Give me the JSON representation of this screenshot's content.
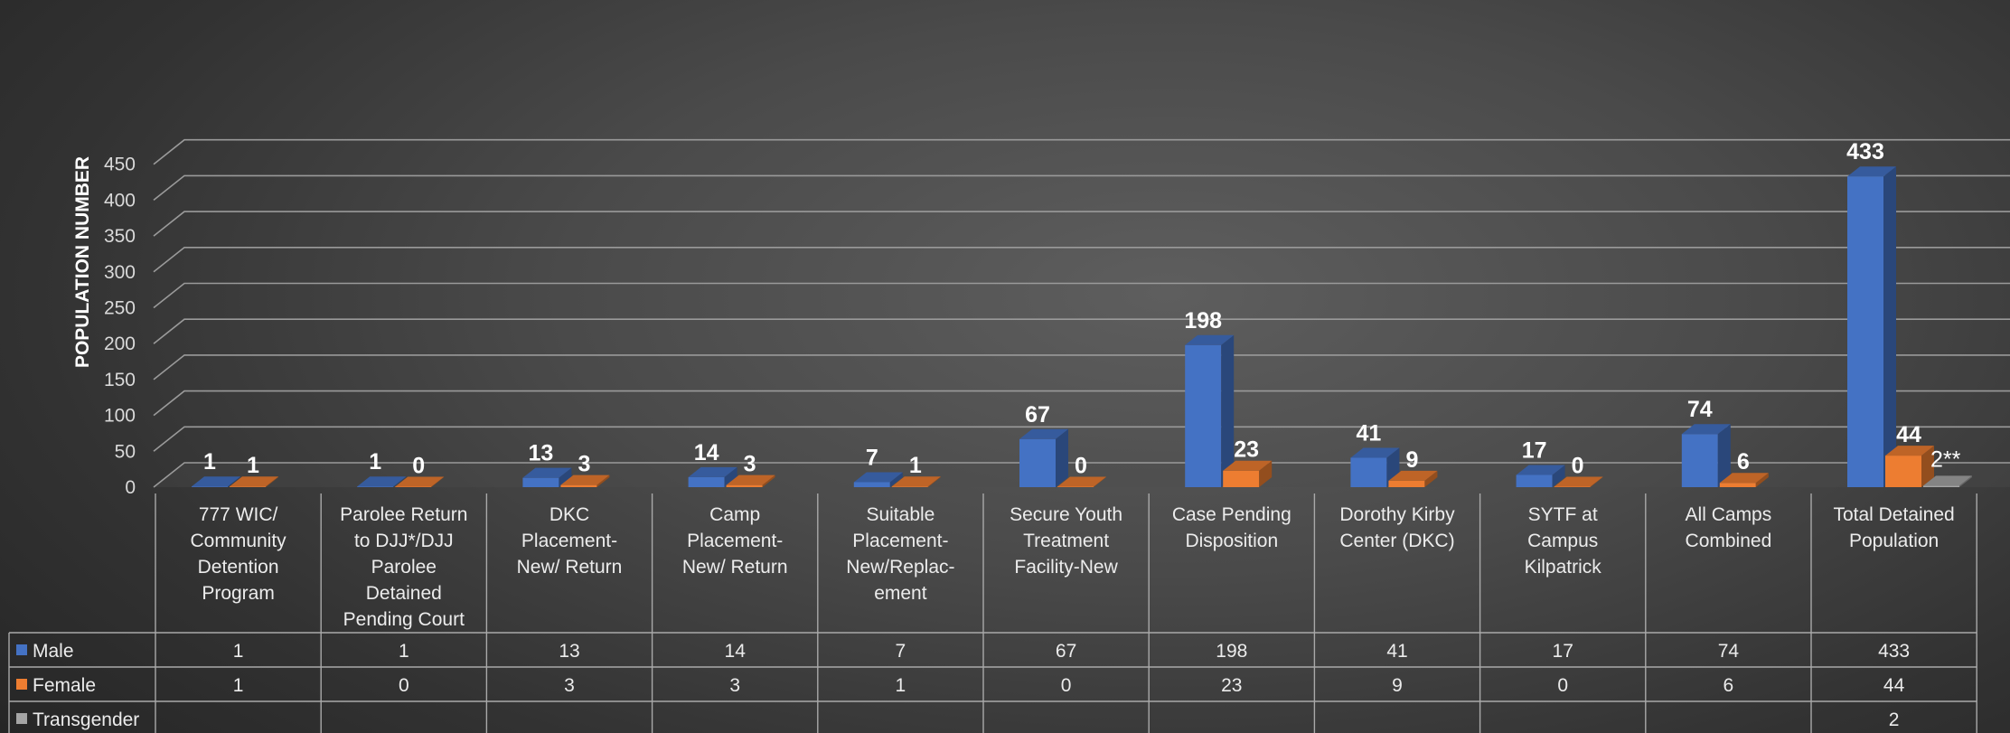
{
  "chart_data": {
    "type": "bar",
    "ylabel": "POPULATION NUMBER",
    "ylim": [
      0,
      450
    ],
    "yticks": [
      0,
      50,
      100,
      150,
      200,
      250,
      300,
      350,
      400,
      450
    ],
    "grid": true,
    "legend": "data-table-left",
    "categories": [
      [
        "777 WIC/",
        "Community",
        "Detention",
        "Program"
      ],
      [
        "Parolee Return",
        "to DJJ*/DJJ",
        "Parolee",
        "Detained",
        "Pending Court"
      ],
      [
        "DKC",
        "Placement-",
        "New/     Return"
      ],
      [
        "Camp",
        "Placement-",
        "New/     Return"
      ],
      [
        "Suitable",
        "Placement-",
        "New/Replac-",
        "ement"
      ],
      [
        "Secure Youth",
        "Treatment",
        "Facility-New"
      ],
      [
        "Case Pending",
        "Disposition"
      ],
      [
        "Dorothy Kirby",
        "Center (DKC)"
      ],
      [
        "SYTF at",
        "Campus",
        "Kilpatrick"
      ],
      [
        "All Camps",
        "Combined"
      ],
      [
        "Total Detained",
        "Population"
      ]
    ],
    "series": [
      {
        "name": "Male",
        "color": "#4472c4",
        "values": [
          1,
          1,
          13,
          14,
          7,
          67,
          198,
          41,
          17,
          74,
          433
        ]
      },
      {
        "name": "Female",
        "color": "#ed7d31",
        "values": [
          1,
          0,
          3,
          3,
          1,
          0,
          23,
          9,
          0,
          6,
          44
        ]
      },
      {
        "name": "Transgender",
        "color": "#a5a5a5",
        "values": [
          null,
          null,
          null,
          null,
          null,
          null,
          null,
          null,
          null,
          null,
          2
        ]
      }
    ],
    "data_labels": {
      "Male": [
        "1",
        "1",
        "13",
        "14",
        "7",
        "67",
        "198",
        "41",
        "17",
        "74",
        "433"
      ],
      "Female": [
        "1",
        "0",
        "3",
        "3",
        "1",
        "0",
        "23",
        "9",
        "0",
        "6",
        "44"
      ],
      "Transgender": [
        "",
        "",
        "",
        "",
        "",
        "",
        "",
        "",
        "",
        "",
        "2**"
      ]
    },
    "table": {
      "Male": [
        "1",
        "1",
        "13",
        "14",
        "7",
        "67",
        "198",
        "41",
        "17",
        "74",
        "433"
      ],
      "Female": [
        "1",
        "0",
        "3",
        "3",
        "1",
        "0",
        "23",
        "9",
        "0",
        "6",
        "44"
      ],
      "Transgender": [
        "",
        "",
        "",
        "",
        "",
        "",
        "",
        "",
        "",
        "",
        "2"
      ]
    }
  }
}
